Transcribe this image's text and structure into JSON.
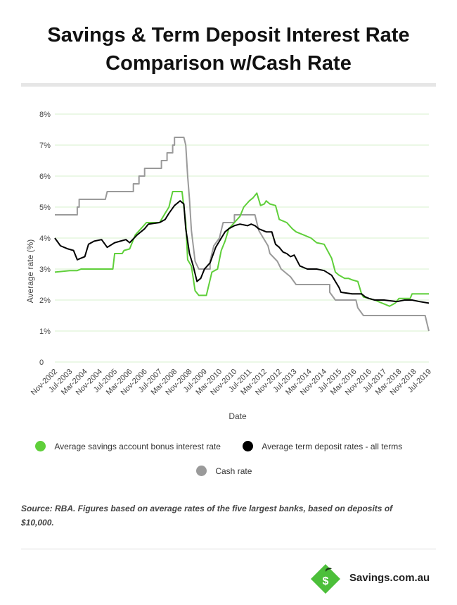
{
  "header": {
    "title_line1": "Savings & Term Deposit Interest Rate",
    "title_line2": "Comparison w/Cash Rate"
  },
  "colors": {
    "savings": "#5fcf3a",
    "term": "#000000",
    "cash": "#9a9a9a",
    "grid": "#d7f0cd",
    "brand_green": "#4cbf3a"
  },
  "chart_data": {
    "type": "line",
    "xlabel": "Date",
    "ylabel": "Average rate (%)",
    "ylim": [
      0,
      8
    ],
    "y_ticks": [
      {
        "value": 0,
        "label": "0"
      },
      {
        "value": 1,
        "label": "1%"
      },
      {
        "value": 2,
        "label": "2%"
      },
      {
        "value": 3,
        "label": "3%"
      },
      {
        "value": 4,
        "label": "4%"
      },
      {
        "value": 5,
        "label": "5%"
      },
      {
        "value": 6,
        "label": "6%"
      },
      {
        "value": 7,
        "label": "7%"
      },
      {
        "value": 8,
        "label": "8%"
      }
    ],
    "x_start": "Nov-2002",
    "x_end": "Jul-2019",
    "x_ticks": [
      "Nov-2002",
      "Jul-2003",
      "Mar-2004",
      "Nov-2004",
      "Jul-2005",
      "Mar-2006",
      "Nov-2006",
      "Jul-2007",
      "Mar-2008",
      "Nov-2008",
      "Jul-2009",
      "Mar-2010",
      "Nov-2010",
      "Jul-2011",
      "Mar-2012",
      "Nov-2012",
      "Jul-2013",
      "Mar-2014",
      "Nov-2014",
      "Jul-2015",
      "Mar-2016",
      "Nov-2016",
      "Jul-2017",
      "Mar-2018",
      "Nov-2018",
      "Jul-2019"
    ],
    "grid": true,
    "legend_position": "bottom",
    "series": [
      {
        "name": "Average savings account bonus interest rate",
        "points": [
          [
            "Nov-2002",
            2.9
          ],
          [
            "Jul-2003",
            2.95
          ],
          [
            "Nov-2003",
            2.95
          ],
          [
            "Jan-2004",
            3.0
          ],
          [
            "Nov-2004",
            3.0
          ],
          [
            "Jun-2005",
            3.0
          ],
          [
            "Jul-2005",
            3.5
          ],
          [
            "Nov-2005",
            3.5
          ],
          [
            "Dec-2005",
            3.6
          ],
          [
            "Mar-2006",
            3.65
          ],
          [
            "Jun-2006",
            4.1
          ],
          [
            "Sep-2006",
            4.3
          ],
          [
            "Dec-2006",
            4.5
          ],
          [
            "Jul-2007",
            4.5
          ],
          [
            "Oct-2007",
            4.8
          ],
          [
            "Dec-2007",
            5.0
          ],
          [
            "Feb-2008",
            5.5
          ],
          [
            "Jul-2008",
            5.5
          ],
          [
            "Sep-2008",
            4.5
          ],
          [
            "Oct-2008",
            3.3
          ],
          [
            "Dec-2008",
            3.1
          ],
          [
            "Feb-2009",
            2.3
          ],
          [
            "Apr-2009",
            2.15
          ],
          [
            "Aug-2009",
            2.15
          ],
          [
            "Nov-2009",
            2.9
          ],
          [
            "Feb-2010",
            3.0
          ],
          [
            "Apr-2010",
            3.6
          ],
          [
            "Jun-2010",
            3.9
          ],
          [
            "Aug-2010",
            4.3
          ],
          [
            "Nov-2010",
            4.5
          ],
          [
            "Feb-2011",
            4.7
          ],
          [
            "Apr-2011",
            5.0
          ],
          [
            "Jul-2011",
            5.2
          ],
          [
            "Sep-2011",
            5.3
          ],
          [
            "Nov-2011",
            5.45
          ],
          [
            "Jan-2012",
            5.05
          ],
          [
            "Mar-2012",
            5.1
          ],
          [
            "Apr-2012",
            5.2
          ],
          [
            "Jun-2012",
            5.1
          ],
          [
            "Sep-2012",
            5.05
          ],
          [
            "Nov-2012",
            4.6
          ],
          [
            "Mar-2013",
            4.5
          ],
          [
            "Jun-2013",
            4.3
          ],
          [
            "Aug-2013",
            4.2
          ],
          [
            "Dec-2013",
            4.1
          ],
          [
            "Apr-2014",
            4.0
          ],
          [
            "Jul-2014",
            3.85
          ],
          [
            "Nov-2014",
            3.8
          ],
          [
            "Mar-2015",
            3.35
          ],
          [
            "May-2015",
            2.9
          ],
          [
            "Jul-2015",
            2.8
          ],
          [
            "Oct-2015",
            2.7
          ],
          [
            "Dec-2015",
            2.7
          ],
          [
            "Feb-2016",
            2.65
          ],
          [
            "May-2016",
            2.6
          ],
          [
            "Jun-2016",
            2.4
          ],
          [
            "Jul-2016",
            2.2
          ],
          [
            "Aug-2016",
            2.1
          ],
          [
            "Nov-2016",
            2.05
          ],
          [
            "Feb-2017",
            2.0
          ],
          [
            "Jun-2017",
            1.9
          ],
          [
            "Aug-2017",
            1.85
          ],
          [
            "Oct-2017",
            1.8
          ],
          [
            "Jan-2018",
            1.9
          ],
          [
            "Mar-2018",
            2.05
          ],
          [
            "Sep-2018",
            2.05
          ],
          [
            "Oct-2018",
            2.2
          ],
          [
            "Jul-2019",
            2.2
          ]
        ]
      },
      {
        "name": "Average term deposit rates - all terms",
        "points": [
          [
            "Nov-2002",
            4.0
          ],
          [
            "Feb-2003",
            3.75
          ],
          [
            "Jun-2003",
            3.65
          ],
          [
            "Sep-2003",
            3.6
          ],
          [
            "Nov-2003",
            3.3
          ],
          [
            "Jan-2004",
            3.35
          ],
          [
            "Mar-2004",
            3.4
          ],
          [
            "May-2004",
            3.8
          ],
          [
            "Aug-2004",
            3.9
          ],
          [
            "Dec-2004",
            3.95
          ],
          [
            "Mar-2005",
            3.7
          ],
          [
            "Jul-2005",
            3.85
          ],
          [
            "Oct-2005",
            3.9
          ],
          [
            "Jan-2006",
            3.95
          ],
          [
            "Mar-2006",
            3.85
          ],
          [
            "Jul-2006",
            4.1
          ],
          [
            "Nov-2006",
            4.3
          ],
          [
            "Jan-2007",
            4.45
          ],
          [
            "Jul-2007",
            4.5
          ],
          [
            "Oct-2007",
            4.6
          ],
          [
            "Dec-2007",
            4.8
          ],
          [
            "Mar-2008",
            5.05
          ],
          [
            "Jun-2008",
            5.2
          ],
          [
            "Aug-2008",
            5.1
          ],
          [
            "Sep-2008",
            4.3
          ],
          [
            "Nov-2008",
            3.5
          ],
          [
            "Jan-2009",
            3.1
          ],
          [
            "Mar-2009",
            2.6
          ],
          [
            "May-2009",
            2.7
          ],
          [
            "Jul-2009",
            3.0
          ],
          [
            "Oct-2009",
            3.2
          ],
          [
            "Jan-2010",
            3.7
          ],
          [
            "Mar-2010",
            3.9
          ],
          [
            "Jun-2010",
            4.2
          ],
          [
            "Aug-2010",
            4.3
          ],
          [
            "Nov-2010",
            4.4
          ],
          [
            "Feb-2011",
            4.45
          ],
          [
            "Jun-2011",
            4.4
          ],
          [
            "Aug-2011",
            4.45
          ],
          [
            "Oct-2011",
            4.4
          ],
          [
            "Dec-2011",
            4.3
          ],
          [
            "Apr-2012",
            4.2
          ],
          [
            "Jul-2012",
            4.2
          ],
          [
            "Sep-2012",
            3.8
          ],
          [
            "Nov-2012",
            3.7
          ],
          [
            "Jan-2013",
            3.55
          ],
          [
            "Mar-2013",
            3.5
          ],
          [
            "May-2013",
            3.4
          ],
          [
            "Jul-2013",
            3.45
          ],
          [
            "Oct-2013",
            3.1
          ],
          [
            "Feb-2014",
            3.0
          ],
          [
            "Jul-2014",
            3.0
          ],
          [
            "Nov-2014",
            2.95
          ],
          [
            "Mar-2015",
            2.8
          ],
          [
            "Jul-2015",
            2.4
          ],
          [
            "Aug-2015",
            2.25
          ],
          [
            "Feb-2016",
            2.2
          ],
          [
            "Jul-2016",
            2.2
          ],
          [
            "Sep-2016",
            2.1
          ],
          [
            "Nov-2016",
            2.05
          ],
          [
            "Feb-2017",
            2.0
          ],
          [
            "Jul-2017",
            2.0
          ],
          [
            "Feb-2018",
            1.95
          ],
          [
            "Jun-2018",
            2.0
          ],
          [
            "Oct-2018",
            2.0
          ],
          [
            "Feb-2019",
            1.95
          ],
          [
            "Jul-2019",
            1.9
          ]
        ]
      },
      {
        "name": "Cash rate",
        "points": [
          [
            "Nov-2002",
            4.75
          ],
          [
            "Nov-2003",
            4.75
          ],
          [
            "Nov-2003",
            5.0
          ],
          [
            "Dec-2003",
            5.0
          ],
          [
            "Dec-2003",
            5.25
          ],
          [
            "Feb-2005",
            5.25
          ],
          [
            "Mar-2005",
            5.5
          ],
          [
            "May-2006",
            5.5
          ],
          [
            "May-2006",
            5.75
          ],
          [
            "Aug-2006",
            5.75
          ],
          [
            "Aug-2006",
            6.0
          ],
          [
            "Nov-2006",
            6.0
          ],
          [
            "Nov-2006",
            6.25
          ],
          [
            "Aug-2007",
            6.25
          ],
          [
            "Aug-2007",
            6.5
          ],
          [
            "Nov-2007",
            6.5
          ],
          [
            "Nov-2007",
            6.75
          ],
          [
            "Feb-2008",
            6.75
          ],
          [
            "Feb-2008",
            7.0
          ],
          [
            "Mar-2008",
            7.0
          ],
          [
            "Mar-2008",
            7.25
          ],
          [
            "Aug-2008",
            7.25
          ],
          [
            "Sep-2008",
            7.0
          ],
          [
            "Oct-2008",
            6.0
          ],
          [
            "Nov-2008",
            5.25
          ],
          [
            "Dec-2008",
            4.25
          ],
          [
            "Feb-2009",
            3.25
          ],
          [
            "Apr-2009",
            3.0
          ],
          [
            "Oct-2009",
            3.0
          ],
          [
            "Oct-2009",
            3.25
          ],
          [
            "Nov-2009",
            3.5
          ],
          [
            "Dec-2009",
            3.75
          ],
          [
            "Mar-2010",
            4.0
          ],
          [
            "Apr-2010",
            4.25
          ],
          [
            "May-2010",
            4.5
          ],
          [
            "Nov-2010",
            4.5
          ],
          [
            "Nov-2010",
            4.75
          ],
          [
            "Oct-2011",
            4.75
          ],
          [
            "Nov-2011",
            4.5
          ],
          [
            "Dec-2011",
            4.25
          ],
          [
            "May-2012",
            3.75
          ],
          [
            "Jun-2012",
            3.5
          ],
          [
            "Oct-2012",
            3.25
          ],
          [
            "Dec-2012",
            3.0
          ],
          [
            "May-2013",
            2.75
          ],
          [
            "Aug-2013",
            2.5
          ],
          [
            "Feb-2015",
            2.5
          ],
          [
            "Feb-2015",
            2.25
          ],
          [
            "May-2015",
            2.0
          ],
          [
            "Apr-2016",
            2.0
          ],
          [
            "May-2016",
            1.75
          ],
          [
            "Aug-2016",
            1.5
          ],
          [
            "May-2019",
            1.5
          ],
          [
            "Jun-2019",
            1.25
          ],
          [
            "Jul-2019",
            1.0
          ]
        ]
      }
    ]
  },
  "legend": {
    "savings": "Average savings account bonus interest rate",
    "term": "Average term deposit rates - all terms",
    "cash": "Cash rate"
  },
  "source_note": "Source: RBA. Figures based on average rates of the five largest banks, based on deposits of $10,000.",
  "footer": {
    "brand_name": "Savings.com.au",
    "logo_letter": "$"
  }
}
